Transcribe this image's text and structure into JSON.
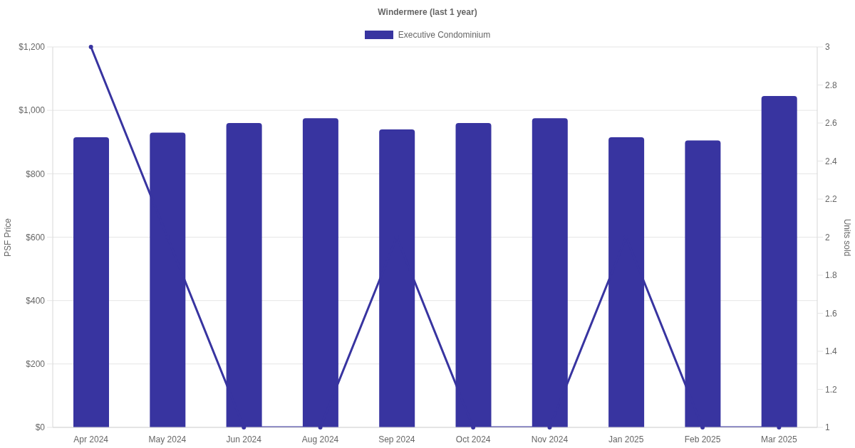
{
  "chart_data": {
    "type": "bar",
    "title": "Windermere (last 1 year)",
    "categories": [
      "Apr 2024",
      "May 2024",
      "Jun 2024",
      "Aug 2024",
      "Sep 2024",
      "Oct 2024",
      "Nov 2024",
      "Jan 2025",
      "Feb 2025",
      "Mar 2025"
    ],
    "series": [
      {
        "type": "line",
        "axis": "y2",
        "color": "#3834a0",
        "values": [
          3,
          2,
          1,
          1,
          2,
          1,
          1,
          2,
          1,
          1
        ]
      },
      {
        "name": "Executive Condominium",
        "color": "#3834a0",
        "values": [
          915,
          930,
          960,
          975,
          940,
          960,
          975,
          915,
          905,
          1045
        ]
      }
    ],
    "ylabel": "PSF Price",
    "y2label": "Units sold",
    "ylim": [
      0,
      1200
    ],
    "yticks": [
      {
        "value": 0,
        "label": "$0"
      },
      {
        "value": 200,
        "label": "$200"
      },
      {
        "value": 400,
        "label": "$400"
      },
      {
        "value": 600,
        "label": "$600"
      },
      {
        "value": 800,
        "label": "$800"
      },
      {
        "value": 1000,
        "label": "$1,000"
      },
      {
        "value": 1200,
        "label": "$1,200"
      }
    ],
    "y2lim": [
      1,
      3
    ],
    "y2ticks": [
      1,
      1.2,
      1.4,
      1.6,
      1.8,
      2,
      2.2,
      2.4,
      2.6,
      2.8,
      3
    ],
    "grid": "y",
    "legend": "top",
    "marker": "circle",
    "line_style": "solid"
  }
}
